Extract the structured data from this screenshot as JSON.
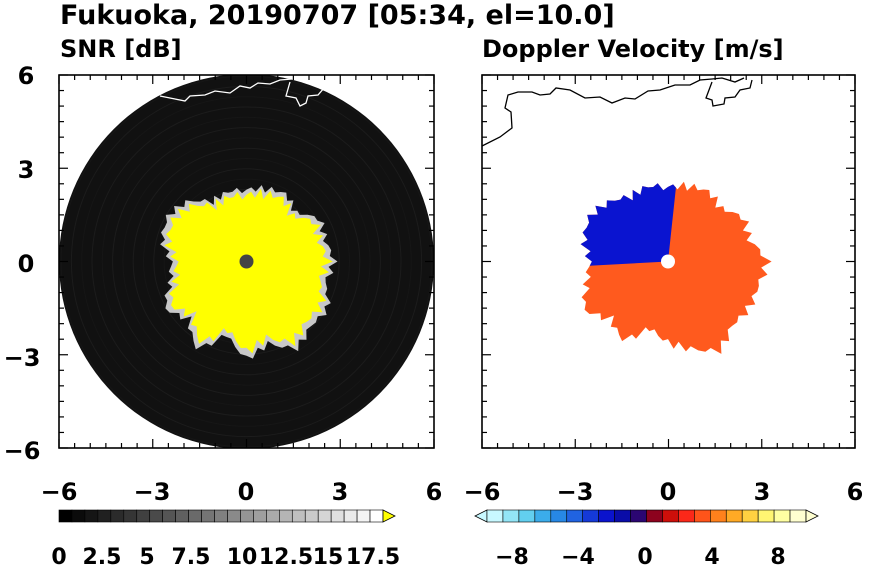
{
  "figure": {
    "title": "Fukuoka, 20190707 [05:34, el=10.0]"
  },
  "chart_data": [
    {
      "type": "heatmap",
      "title": "SNR [dB]",
      "xlim": [
        -6,
        6
      ],
      "ylim": [
        -6,
        6
      ],
      "x_ticks": [
        -6,
        -3,
        0,
        3,
        6
      ],
      "y_ticks": [
        -6,
        -3,
        0,
        3,
        6
      ],
      "x_tick_labels": [
        "−6",
        "−3",
        "0",
        "3",
        "6"
      ],
      "y_tick_labels": [
        "6",
        "3",
        "0",
        "−3",
        "−6"
      ],
      "range_circle_radius": 6,
      "no_echo_color": "#111111",
      "echo_color": "#ffff00",
      "weak_echo_color": "#c8c8c8",
      "colorbar": {
        "min": 0,
        "max": 18.75,
        "steps": 25,
        "labels": [
          "0",
          "2.5",
          "5",
          "7.5",
          "10",
          "12.5",
          "15",
          "17.5"
        ],
        "label_values": [
          0,
          2.5,
          5,
          7.5,
          10,
          12.5,
          15,
          17.5
        ],
        "overflow_color": "#ffff00",
        "colors": [
          "#000000",
          "#ffffff"
        ]
      },
      "echo_extent": {
        "angles_deg": [
          0,
          15,
          30,
          45,
          60,
          75,
          90,
          105,
          120,
          135,
          150,
          165,
          180,
          195,
          210,
          225,
          240,
          255,
          270,
          285,
          300,
          315,
          330,
          345
        ],
        "radius_km": [
          2.3,
          2.4,
          2.5,
          2.2,
          2.7,
          2.6,
          2.8,
          2.6,
          3.0,
          2.9,
          3.2,
          2.7,
          3.1,
          2.4,
          3.2,
          2.6,
          3.0,
          2.5,
          2.4,
          2.8,
          2.9,
          2.7,
          2.2,
          2.3
        ]
      }
    },
    {
      "type": "heatmap",
      "title": "Doppler Velocity [m/s]",
      "xlim": [
        -6,
        6
      ],
      "ylim": [
        -6,
        6
      ],
      "x_ticks": [
        -6,
        -3,
        0,
        3,
        6
      ],
      "y_ticks": [
        -6,
        -3,
        0,
        3,
        6
      ],
      "x_tick_labels": [
        "−6",
        "−3",
        "0",
        "3",
        "6"
      ],
      "approaching_color": "#0a14d0",
      "receding_color": "#ff5a1e",
      "colorbar": {
        "min": -10,
        "max": 10,
        "steps": 20,
        "labels": [
          "−8",
          "−4",
          "0",
          "4",
          "8"
        ],
        "label_values": [
          -8,
          -4,
          0,
          4,
          8
        ],
        "under_color": "#c8f8ff",
        "over_color": "#ffffd0",
        "colors": [
          "#c8f8ff",
          "#6cd8f0",
          "#2a9ce8",
          "#1f5ce0",
          "#0a14d0",
          "#080890",
          "#b00000",
          "#ff2a1a",
          "#ff7a1a",
          "#ffc02a",
          "#ffff80",
          "#ffffd0"
        ]
      },
      "echo_extent": {
        "angles_deg": [
          0,
          15,
          30,
          45,
          60,
          75,
          90,
          105,
          120,
          135,
          150,
          165,
          180,
          195,
          210,
          225,
          240,
          255,
          270,
          285,
          300,
          315,
          330,
          345
        ],
        "radius_km": [
          2.4,
          2.5,
          2.6,
          2.4,
          2.8,
          2.7,
          3.2,
          3.0,
          3.0,
          2.9,
          3.3,
          2.9,
          2.6,
          2.2,
          2.9,
          2.6,
          3.1,
          2.7,
          2.5,
          2.8,
          2.9,
          2.7,
          2.4,
          2.5
        ]
      }
    }
  ]
}
